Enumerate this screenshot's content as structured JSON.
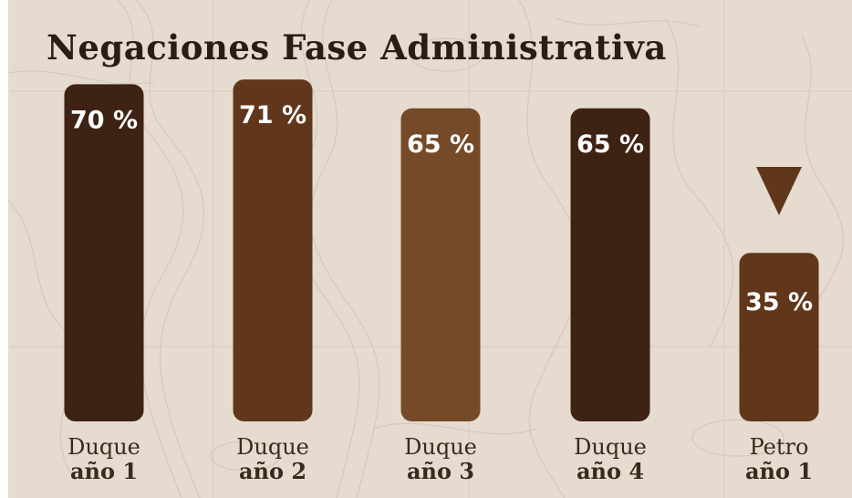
{
  "chart_data": {
    "type": "bar",
    "title": "Negaciones Fase Administrativa",
    "xlabel": "",
    "ylabel": "",
    "ylim": [
      0,
      75
    ],
    "grid": false,
    "legend": "none",
    "categories": [
      {
        "line1": "Duque",
        "line2": "año 1"
      },
      {
        "line1": "Duque",
        "line2": "año 2"
      },
      {
        "line1": "Duque",
        "line2": "año 3"
      },
      {
        "line1": "Duque",
        "line2": "año 4"
      },
      {
        "line1": "Petro",
        "line2": "año 1"
      }
    ],
    "values": [
      70,
      71,
      65,
      65,
      35
    ],
    "value_labels": [
      "70 %",
      "71 %",
      "65 %",
      "65 %",
      "35 %"
    ],
    "bar_colors": [
      "#3e2214",
      "#60371a",
      "#744a28",
      "#3e2214",
      "#60371a"
    ],
    "annotation": {
      "type": "down-triangle-marker",
      "category_index": 4,
      "color": "#60371a"
    }
  },
  "colors": {
    "background": "#e6dbcf",
    "title": "#2a1d14",
    "category_text": "#3a2a1e",
    "value_text": "#ffffff"
  }
}
